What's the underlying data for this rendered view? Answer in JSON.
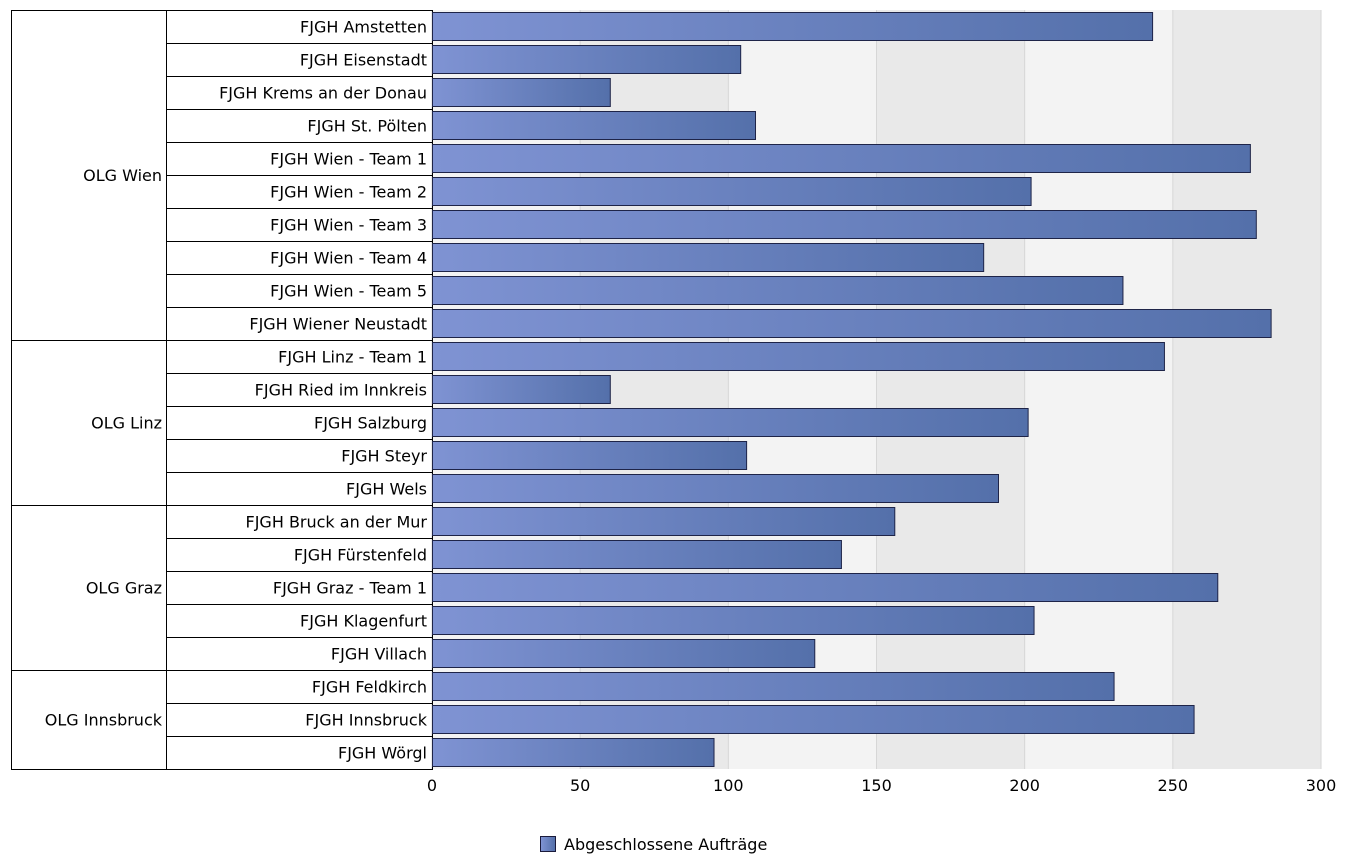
{
  "chart_data": {
    "type": "bar",
    "orientation": "horizontal",
    "title": "",
    "xlabel": "",
    "ylabel": "",
    "xlim": [
      0,
      300
    ],
    "x_ticks": [
      0,
      50,
      100,
      150,
      200,
      250,
      300
    ],
    "grid": "vertical bands",
    "legend_position": "bottom-center",
    "bar_color_start": "#7f93d3",
    "bar_color_end": "#5470aa",
    "series": [
      {
        "name": "Abgeschlossene Aufträge",
        "groups": [
          {
            "name": "OLG Wien",
            "items": [
              {
                "label": "FJGH Amstetten",
                "value": 243
              },
              {
                "label": "FJGH Eisenstadt",
                "value": 104
              },
              {
                "label": "FJGH Krems an der Donau",
                "value": 60
              },
              {
                "label": "FJGH St. Pölten",
                "value": 109
              },
              {
                "label": "FJGH Wien - Team 1",
                "value": 276
              },
              {
                "label": "FJGH Wien - Team 2",
                "value": 202
              },
              {
                "label": "FJGH Wien - Team 3",
                "value": 278
              },
              {
                "label": "FJGH Wien - Team 4",
                "value": 186
              },
              {
                "label": "FJGH Wien - Team 5",
                "value": 233
              },
              {
                "label": "FJGH Wiener Neustadt",
                "value": 283
              }
            ]
          },
          {
            "name": "OLG Linz",
            "items": [
              {
                "label": "FJGH Linz - Team 1",
                "value": 247
              },
              {
                "label": "FJGH Ried im Innkreis",
                "value": 60
              },
              {
                "label": "FJGH Salzburg",
                "value": 201
              },
              {
                "label": "FJGH Steyr",
                "value": 106
              },
              {
                "label": "FJGH Wels",
                "value": 191
              }
            ]
          },
          {
            "name": "OLG Graz",
            "items": [
              {
                "label": "FJGH Bruck an der Mur",
                "value": 156
              },
              {
                "label": "FJGH Fürstenfeld",
                "value": 138
              },
              {
                "label": "FJGH Graz - Team 1",
                "value": 265
              },
              {
                "label": "FJGH Klagenfurt",
                "value": 203
              },
              {
                "label": "FJGH Villach",
                "value": 129
              }
            ]
          },
          {
            "name": "OLG Innsbruck",
            "items": [
              {
                "label": "FJGH Feldkirch",
                "value": 230
              },
              {
                "label": "FJGH Innsbruck",
                "value": 257
              },
              {
                "label": "FJGH Wörgl",
                "value": 95
              }
            ]
          }
        ]
      }
    ]
  }
}
